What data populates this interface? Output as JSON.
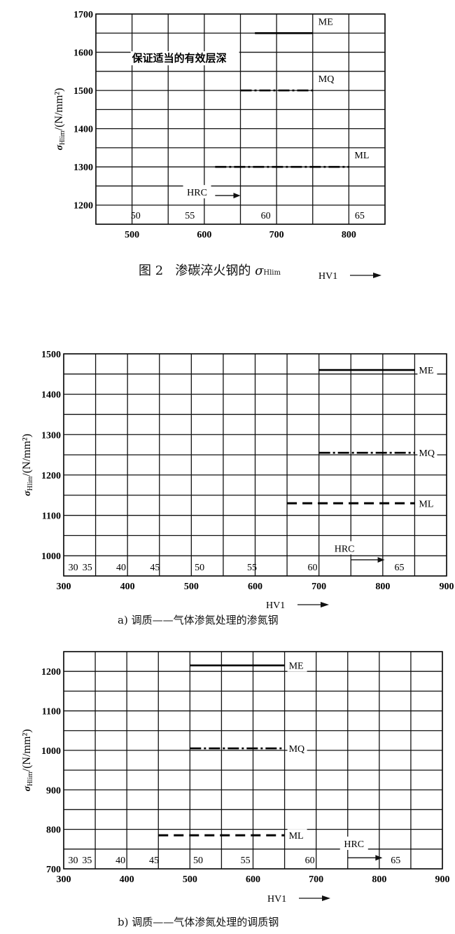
{
  "y_axis_label": {
    "symbol": "σ",
    "subscript": "Hlim",
    "unit": "/(N/mm²)"
  },
  "x_axis_label": "HV1",
  "chart_data": [
    {
      "type": "line",
      "caption": {
        "prefix": "图 2",
        "text": "渗碳淬火钢的 ",
        "symbol": "σ",
        "subscript": "Hlim"
      },
      "xlabel": "HV1",
      "xlim": [
        450,
        850
      ],
      "ylim": [
        1150,
        1700
      ],
      "xticks": [
        500,
        600,
        700,
        800
      ],
      "yticks": [
        1200,
        1300,
        1400,
        1500,
        1600,
        1700
      ],
      "grid": true,
      "annotation": {
        "text": "保证适当的有效层深",
        "x": 500,
        "y": 1575
      },
      "hrc_label": "HRC",
      "hrc_scale": [
        {
          "hrc": "50",
          "hv": 505
        },
        {
          "hrc": "55",
          "hv": 580
        },
        {
          "hrc": "60",
          "hv": 685
        },
        {
          "hrc": "65",
          "hv": 815
        }
      ],
      "series": [
        {
          "name": "ME",
          "x": [
            670,
            750
          ],
          "y": 1650,
          "style": "solid"
        },
        {
          "name": "MQ",
          "x": [
            650,
            750
          ],
          "y": 1500,
          "style": "dashdot"
        },
        {
          "name": "ML",
          "x": [
            615,
            800
          ],
          "y": 1300,
          "style": "dashdot"
        }
      ]
    },
    {
      "type": "line",
      "caption": {
        "prefix": "a)",
        "text": "调质——气体渗氮处理的渗氮钢"
      },
      "xlabel": "HV1",
      "xlim": [
        300,
        900
      ],
      "ylim": [
        950,
        1500
      ],
      "xticks": [
        300,
        400,
        500,
        600,
        700,
        800,
        900
      ],
      "yticks": [
        1000,
        1100,
        1200,
        1300,
        1400,
        1500
      ],
      "grid": true,
      "hrc_label": "HRC",
      "hrc_scale": [
        {
          "hrc": "30",
          "hv": 315
        },
        {
          "hrc": "35",
          "hv": 337
        },
        {
          "hrc": "40",
          "hv": 390
        },
        {
          "hrc": "45",
          "hv": 443
        },
        {
          "hrc": "50",
          "hv": 513
        },
        {
          "hrc": "55",
          "hv": 595
        },
        {
          "hrc": "60",
          "hv": 690
        },
        {
          "hrc": "65",
          "hv": 826
        }
      ],
      "series": [
        {
          "name": "ME",
          "x": [
            700,
            850
          ],
          "y": 1460,
          "style": "solid"
        },
        {
          "name": "MQ",
          "x": [
            700,
            850
          ],
          "y": 1255,
          "style": "dashdot"
        },
        {
          "name": "ML",
          "x": [
            650,
            850
          ],
          "y": 1130,
          "style": "dashed"
        }
      ]
    },
    {
      "type": "line",
      "caption": {
        "prefix": "b)",
        "text": "调质——气体渗氮处理的调质钢"
      },
      "xlabel": "HV1",
      "xlim": [
        300,
        900
      ],
      "ylim": [
        700,
        1250
      ],
      "xticks": [
        300,
        400,
        500,
        600,
        700,
        800,
        900
      ],
      "yticks": [
        700,
        800,
        900,
        1000,
        1100,
        1200
      ],
      "grid": true,
      "hrc_label": "HRC",
      "hrc_scale": [
        {
          "hrc": "30",
          "hv": 315
        },
        {
          "hrc": "35",
          "hv": 337
        },
        {
          "hrc": "40",
          "hv": 390
        },
        {
          "hrc": "45",
          "hv": 443
        },
        {
          "hrc": "50",
          "hv": 513
        },
        {
          "hrc": "55",
          "hv": 588
        },
        {
          "hrc": "60",
          "hv": 690
        },
        {
          "hrc": "65",
          "hv": 826
        }
      ],
      "series": [
        {
          "name": "ME",
          "x": [
            500,
            650
          ],
          "y": 1215,
          "style": "solid"
        },
        {
          "name": "MQ",
          "x": [
            500,
            650
          ],
          "y": 1005,
          "style": "dashdot"
        },
        {
          "name": "ML",
          "x": [
            450,
            650
          ],
          "y": 785,
          "style": "dashed"
        }
      ]
    }
  ]
}
